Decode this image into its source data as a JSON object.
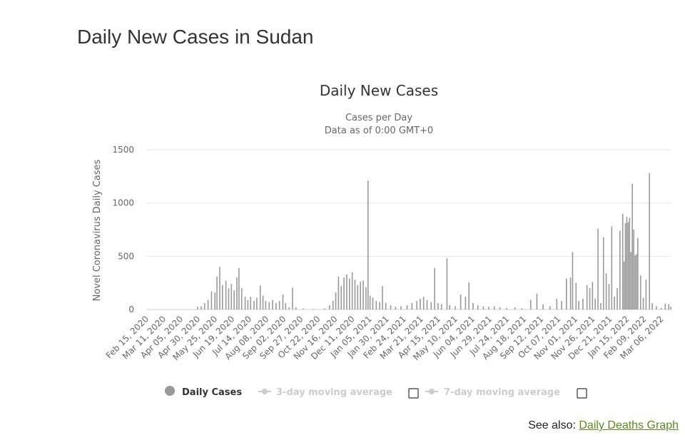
{
  "page": {
    "title": "Daily New Cases in Sudan",
    "see_also_prefix": "See also:",
    "see_also_link": "Daily Deaths Graph"
  },
  "legend": {
    "items": [
      {
        "label": "Daily Cases",
        "active": true,
        "checkbox": false
      },
      {
        "label": "3-day moving average",
        "active": false,
        "checkbox": true
      },
      {
        "label": "7-day moving average",
        "active": false,
        "checkbox": true
      }
    ]
  },
  "colors": {
    "bar": "#999999",
    "grid": "#e6e6e6",
    "text": "#333333",
    "muted": "#cccccc",
    "link": "#5a8a1e"
  },
  "chart_data": {
    "type": "bar",
    "title": "Daily New Cases",
    "subtitle_lines": [
      "Cases per Day",
      "Data as of 0:00 GMT+0"
    ],
    "ylabel": "Novel Coronavirus Daily Cases",
    "ylim": [
      0,
      1500
    ],
    "yticks": [
      0,
      500,
      1000,
      1500
    ],
    "grid": true,
    "legend_position": "bottom",
    "x_start": "2020-02-15",
    "x_end": "2022-03-21",
    "xticks": [
      "Feb 15, 2020",
      "Mar 11, 2020",
      "Apr 05, 2020",
      "Apr 30, 2020",
      "May 25, 2020",
      "Jun 19, 2020",
      "Jul 14, 2020",
      "Aug 08, 2020",
      "Sep 02, 2020",
      "Sep 27, 2020",
      "Oct 22, 2020",
      "Nov 16, 2020",
      "Dec 11, 2020",
      "Jan 05, 2021",
      "Jan 30, 2021",
      "Feb 24, 2021",
      "Mar 21, 2021",
      "Apr 15, 2021",
      "May 10, 2021",
      "Jun 04, 2021",
      "Jun 29, 2021",
      "Jul 24, 2021",
      "Aug 18, 2021",
      "Sep 12, 2021",
      "Oct 07, 2021",
      "Nov 01, 2021",
      "Nov 26, 2021",
      "Dec 21, 2021",
      "Jan 15, 2022",
      "Feb 09, 2022",
      "Mar 06, 2022"
    ],
    "series": [
      {
        "name": "Daily Cases",
        "points": [
          [
            "2020-04-30",
            25
          ],
          [
            "2020-05-05",
            30
          ],
          [
            "2020-05-10",
            60
          ],
          [
            "2020-05-15",
            90
          ],
          [
            "2020-05-20",
            170
          ],
          [
            "2020-05-25",
            160
          ],
          [
            "2020-05-28",
            310
          ],
          [
            "2020-06-01",
            400
          ],
          [
            "2020-06-05",
            230
          ],
          [
            "2020-06-10",
            270
          ],
          [
            "2020-06-14",
            200
          ],
          [
            "2020-06-18",
            240
          ],
          [
            "2020-06-22",
            180
          ],
          [
            "2020-06-26",
            300
          ],
          [
            "2020-06-29",
            390
          ],
          [
            "2020-07-03",
            200
          ],
          [
            "2020-07-08",
            120
          ],
          [
            "2020-07-12",
            90
          ],
          [
            "2020-07-16",
            120
          ],
          [
            "2020-07-21",
            80
          ],
          [
            "2020-07-25",
            110
          ],
          [
            "2020-07-30",
            225
          ],
          [
            "2020-08-03",
            130
          ],
          [
            "2020-08-07",
            80
          ],
          [
            "2020-08-12",
            70
          ],
          [
            "2020-08-17",
            90
          ],
          [
            "2020-08-22",
            60
          ],
          [
            "2020-08-27",
            80
          ],
          [
            "2020-09-01",
            140
          ],
          [
            "2020-09-05",
            60
          ],
          [
            "2020-09-10",
            20
          ],
          [
            "2020-09-15",
            205
          ],
          [
            "2020-09-20",
            20
          ],
          [
            "2020-10-01",
            10
          ],
          [
            "2020-10-15",
            5
          ],
          [
            "2020-11-01",
            10
          ],
          [
            "2020-11-08",
            40
          ],
          [
            "2020-11-13",
            80
          ],
          [
            "2020-11-17",
            160
          ],
          [
            "2020-11-21",
            310
          ],
          [
            "2020-11-25",
            220
          ],
          [
            "2020-11-29",
            300
          ],
          [
            "2020-12-03",
            330
          ],
          [
            "2020-12-07",
            290
          ],
          [
            "2020-12-11",
            350
          ],
          [
            "2020-12-15",
            280
          ],
          [
            "2020-12-19",
            230
          ],
          [
            "2020-12-23",
            260
          ],
          [
            "2020-12-27",
            270
          ],
          [
            "2020-12-31",
            210
          ],
          [
            "2021-01-03",
            1210
          ],
          [
            "2021-01-06",
            130
          ],
          [
            "2021-01-10",
            110
          ],
          [
            "2021-01-15",
            80
          ],
          [
            "2021-01-20",
            70
          ],
          [
            "2021-01-24",
            220
          ],
          [
            "2021-01-29",
            60
          ],
          [
            "2021-02-05",
            40
          ],
          [
            "2021-02-12",
            25
          ],
          [
            "2021-02-20",
            30
          ],
          [
            "2021-03-01",
            40
          ],
          [
            "2021-03-08",
            60
          ],
          [
            "2021-03-15",
            80
          ],
          [
            "2021-03-20",
            100
          ],
          [
            "2021-03-25",
            120
          ],
          [
            "2021-03-30",
            90
          ],
          [
            "2021-04-05",
            70
          ],
          [
            "2021-04-10",
            390
          ],
          [
            "2021-04-15",
            60
          ],
          [
            "2021-04-20",
            50
          ],
          [
            "2021-04-28",
            480
          ],
          [
            "2021-05-02",
            40
          ],
          [
            "2021-05-10",
            30
          ],
          [
            "2021-05-18",
            140
          ],
          [
            "2021-05-25",
            120
          ],
          [
            "2021-05-30",
            255
          ],
          [
            "2021-06-05",
            60
          ],
          [
            "2021-06-12",
            40
          ],
          [
            "2021-06-20",
            30
          ],
          [
            "2021-06-28",
            25
          ],
          [
            "2021-07-06",
            30
          ],
          [
            "2021-07-14",
            20
          ],
          [
            "2021-07-24",
            15
          ],
          [
            "2021-08-05",
            20
          ],
          [
            "2021-08-15",
            10
          ],
          [
            "2021-08-28",
            90
          ],
          [
            "2021-09-06",
            150
          ],
          [
            "2021-09-15",
            50
          ],
          [
            "2021-09-25",
            30
          ],
          [
            "2021-10-05",
            100
          ],
          [
            "2021-10-12",
            80
          ],
          [
            "2021-10-19",
            290
          ],
          [
            "2021-10-25",
            300
          ],
          [
            "2021-10-28",
            540
          ],
          [
            "2021-11-02",
            250
          ],
          [
            "2021-11-06",
            80
          ],
          [
            "2021-11-12",
            100
          ],
          [
            "2021-11-18",
            230
          ],
          [
            "2021-11-22",
            200
          ],
          [
            "2021-11-26",
            260
          ],
          [
            "2021-11-30",
            100
          ],
          [
            "2021-12-04",
            760
          ],
          [
            "2021-12-08",
            60
          ],
          [
            "2021-12-12",
            680
          ],
          [
            "2021-12-16",
            340
          ],
          [
            "2021-12-20",
            240
          ],
          [
            "2021-12-24",
            780
          ],
          [
            "2021-12-28",
            120
          ],
          [
            "2022-01-01",
            200
          ],
          [
            "2022-01-05",
            740
          ],
          [
            "2022-01-09",
            900
          ],
          [
            "2022-01-11",
            450
          ],
          [
            "2022-01-13",
            810
          ],
          [
            "2022-01-15",
            870
          ],
          [
            "2022-01-17",
            820
          ],
          [
            "2022-01-19",
            860
          ],
          [
            "2022-01-21",
            540
          ],
          [
            "2022-01-23",
            1180
          ],
          [
            "2022-01-25",
            750
          ],
          [
            "2022-01-27",
            510
          ],
          [
            "2022-01-29",
            520
          ],
          [
            "2022-01-31",
            670
          ],
          [
            "2022-02-04",
            320
          ],
          [
            "2022-02-08",
            110
          ],
          [
            "2022-02-12",
            280
          ],
          [
            "2022-02-17",
            1280
          ],
          [
            "2022-02-21",
            60
          ],
          [
            "2022-02-27",
            30
          ],
          [
            "2022-03-06",
            15
          ],
          [
            "2022-03-12",
            55
          ],
          [
            "2022-03-17",
            50
          ],
          [
            "2022-03-20",
            25
          ]
        ]
      }
    ]
  }
}
